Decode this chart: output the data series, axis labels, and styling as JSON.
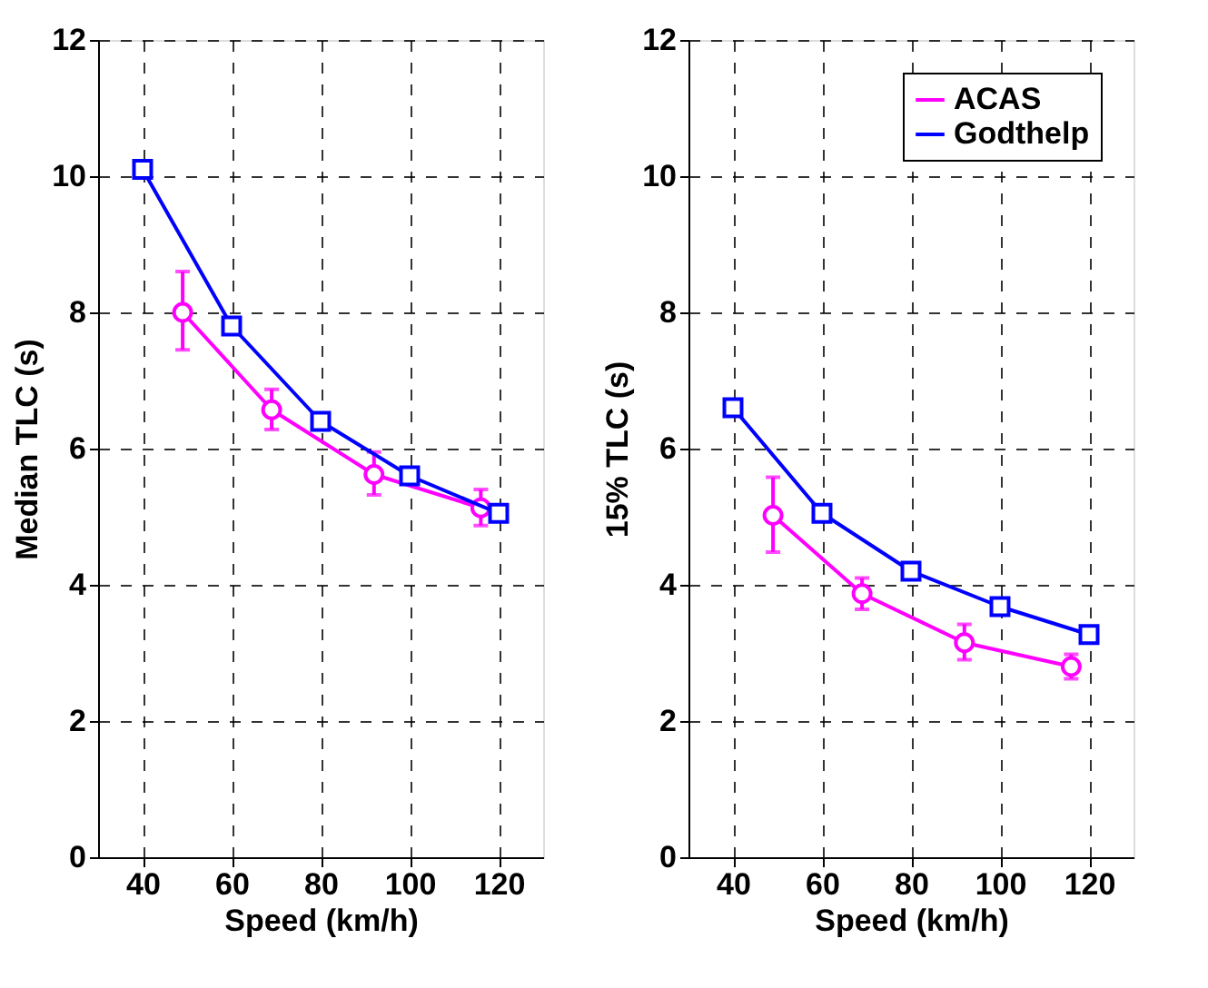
{
  "chart_data": [
    {
      "type": "line",
      "xlabel": "Speed (km/h)",
      "ylabel": "Median TLC (s)",
      "xlim": [
        30,
        130
      ],
      "xticks": [
        40,
        60,
        80,
        100,
        120
      ],
      "ylim": [
        0,
        12
      ],
      "yticks": [
        0,
        2,
        4,
        6,
        8,
        10,
        12
      ],
      "grid": true,
      "legend": false,
      "line_style": "solid",
      "series": [
        {
          "color": "#ff00ff",
          "marker": "circle",
          "x": [
            49,
            69,
            92,
            116
          ],
          "values": [
            8.0,
            6.57,
            5.62,
            5.13
          ],
          "errors": [
            [
              7.45,
              8.6
            ],
            [
              6.28,
              6.87
            ],
            [
              5.32,
              5.95
            ],
            [
              4.87,
              5.4
            ]
          ]
        },
        {
          "color": "#0000ff",
          "marker": "square",
          "x": [
            40,
            60,
            80,
            100,
            120
          ],
          "values": [
            10.1,
            7.8,
            6.4,
            5.6,
            5.05
          ]
        }
      ]
    },
    {
      "type": "line",
      "xlabel": "Speed (km/h)",
      "ylabel": "15% TLC (s)",
      "xlim": [
        30,
        130
      ],
      "xticks": [
        40,
        60,
        80,
        100,
        120
      ],
      "ylim": [
        0,
        12
      ],
      "yticks": [
        0,
        2,
        4,
        6,
        8,
        10,
        12
      ],
      "grid": true,
      "legend": "top right",
      "line_style": "solid",
      "series": [
        {
          "name": "ACAS",
          "color": "#ff00ff",
          "marker": "circle",
          "x": [
            49,
            69,
            92,
            116
          ],
          "values": [
            5.02,
            3.87,
            3.15,
            2.8
          ],
          "errors": [
            [
              4.48,
              5.58
            ],
            [
              3.64,
              4.1
            ],
            [
              2.9,
              3.42
            ],
            [
              2.62,
              2.98
            ]
          ]
        },
        {
          "name": "Godthelp",
          "color": "#0000ff",
          "marker": "square",
          "x": [
            40,
            60,
            80,
            100,
            120
          ],
          "values": [
            6.6,
            5.05,
            4.2,
            3.68,
            3.27
          ]
        }
      ]
    }
  ]
}
